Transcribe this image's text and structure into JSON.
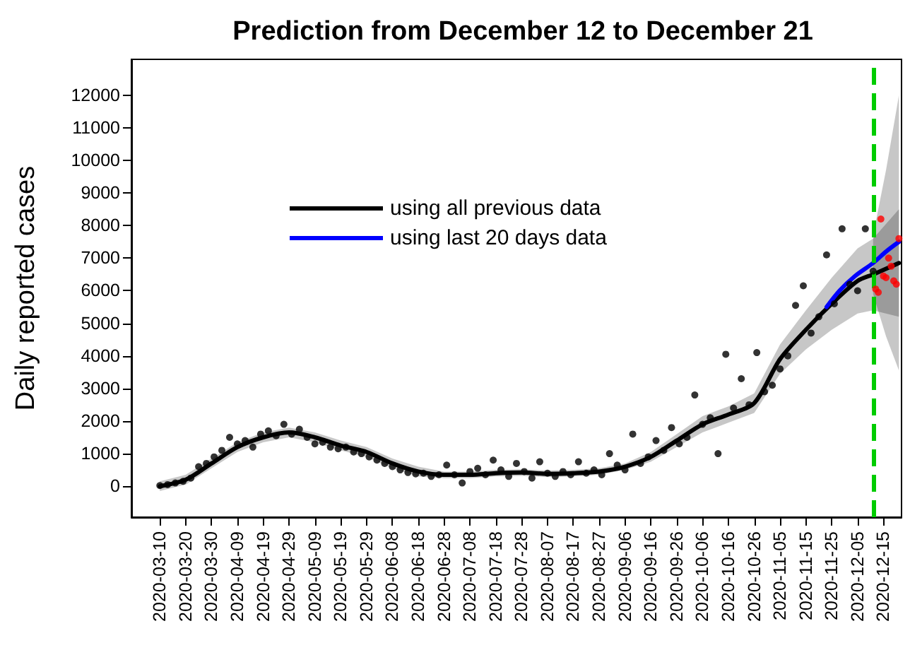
{
  "chart_data": {
    "type": "scatter",
    "title": "Prediction from December 12 to December 21",
    "ylabel": "Daily reported cases",
    "xlim": [
      "2020-02-28",
      "2020-12-22"
    ],
    "ylim": [
      -950,
      13100
    ],
    "xticks": [
      "2020-03-10",
      "2020-03-20",
      "2020-03-30",
      "2020-04-09",
      "2020-04-19",
      "2020-04-29",
      "2020-05-09",
      "2020-05-19",
      "2020-05-29",
      "2020-06-08",
      "2020-06-18",
      "2020-06-28",
      "2020-07-08",
      "2020-07-18",
      "2020-07-28",
      "2020-08-07",
      "2020-08-17",
      "2020-08-27",
      "2020-09-06",
      "2020-09-16",
      "2020-09-26",
      "2020-10-06",
      "2020-10-16",
      "2020-10-26",
      "2020-11-05",
      "2020-11-15",
      "2020-11-25",
      "2020-12-05",
      "2020-12-15"
    ],
    "yticks": [
      0,
      1000,
      2000,
      3000,
      4000,
      5000,
      6000,
      7000,
      8000,
      9000,
      10000,
      11000,
      12000
    ],
    "grid": false,
    "legend": "top left",
    "ref_lines": [
      {
        "axis": "x",
        "value": "2020-12-11",
        "color": "#00cc00",
        "line_style": "dashed"
      }
    ],
    "series": [
      {
        "marker": "circle",
        "color": "#000000",
        "x": [
          "2020-03-10",
          "2020-03-13",
          "2020-03-16",
          "2020-03-19",
          "2020-03-22",
          "2020-03-25",
          "2020-03-28",
          "2020-03-31",
          "2020-04-03",
          "2020-04-06",
          "2020-04-09",
          "2020-04-12",
          "2020-04-15",
          "2020-04-18",
          "2020-04-21",
          "2020-04-24",
          "2020-04-27",
          "2020-04-30",
          "2020-05-03",
          "2020-05-06",
          "2020-05-09",
          "2020-05-12",
          "2020-05-15",
          "2020-05-18",
          "2020-05-21",
          "2020-05-24",
          "2020-05-27",
          "2020-05-30",
          "2020-06-02",
          "2020-06-05",
          "2020-06-08",
          "2020-06-11",
          "2020-06-14",
          "2020-06-17",
          "2020-06-20",
          "2020-06-23",
          "2020-06-26",
          "2020-06-29",
          "2020-07-02",
          "2020-07-05",
          "2020-07-08",
          "2020-07-11",
          "2020-07-14",
          "2020-07-17",
          "2020-07-20",
          "2020-07-23",
          "2020-07-26",
          "2020-07-29",
          "2020-08-01",
          "2020-08-04",
          "2020-08-07",
          "2020-08-10",
          "2020-08-13",
          "2020-08-16",
          "2020-08-19",
          "2020-08-22",
          "2020-08-25",
          "2020-08-28",
          "2020-08-31",
          "2020-09-03",
          "2020-09-06",
          "2020-09-09",
          "2020-09-12",
          "2020-09-15",
          "2020-09-18",
          "2020-09-21",
          "2020-09-24",
          "2020-09-27",
          "2020-09-30",
          "2020-10-03",
          "2020-10-06",
          "2020-10-09",
          "2020-10-12",
          "2020-10-15",
          "2020-10-18",
          "2020-10-21",
          "2020-10-24",
          "2020-10-27",
          "2020-10-30",
          "2020-11-02",
          "2020-11-05",
          "2020-11-08",
          "2020-11-11",
          "2020-11-14",
          "2020-11-17",
          "2020-11-20",
          "2020-11-23",
          "2020-11-26",
          "2020-11-29",
          "2020-12-02",
          "2020-12-05",
          "2020-12-08",
          "2020-12-11"
        ],
        "values": [
          20,
          50,
          100,
          150,
          250,
          600,
          700,
          900,
          1100,
          1500,
          1300,
          1400,
          1200,
          1600,
          1700,
          1550,
          1900,
          1600,
          1750,
          1500,
          1300,
          1350,
          1200,
          1150,
          1200,
          1050,
          1000,
          900,
          800,
          700,
          600,
          500,
          420,
          380,
          400,
          300,
          350,
          650,
          350,
          100,
          450,
          550,
          350,
          800,
          500,
          300,
          700,
          450,
          250,
          750,
          400,
          300,
          450,
          350,
          750,
          400,
          500,
          350,
          1000,
          650,
          500,
          1600,
          700,
          900,
          1400,
          1100,
          1800,
          1300,
          1500,
          2800,
          1900,
          2100,
          1000,
          4050,
          2400,
          3300,
          2500,
          4100,
          2900,
          3100,
          3600,
          4000,
          5550,
          6150,
          4700,
          5200,
          7100,
          5600,
          7900,
          6200,
          6000,
          7900,
          6600
        ]
      },
      {
        "type": "line",
        "marker": "none",
        "name": "using all previous data",
        "color": "#000000",
        "x": [
          "2020-03-10",
          "2020-03-20",
          "2020-03-30",
          "2020-04-09",
          "2020-04-19",
          "2020-04-29",
          "2020-05-09",
          "2020-05-19",
          "2020-05-29",
          "2020-06-08",
          "2020-06-18",
          "2020-06-28",
          "2020-07-08",
          "2020-07-18",
          "2020-07-28",
          "2020-08-07",
          "2020-08-17",
          "2020-08-27",
          "2020-09-06",
          "2020-09-16",
          "2020-09-26",
          "2020-10-06",
          "2020-10-16",
          "2020-10-26",
          "2020-11-05",
          "2020-11-15",
          "2020-11-25",
          "2020-12-05",
          "2020-12-11",
          "2020-12-21"
        ],
        "values": [
          0,
          200,
          700,
          1200,
          1500,
          1650,
          1500,
          1250,
          1050,
          700,
          450,
          350,
          350,
          400,
          420,
          380,
          400,
          450,
          600,
          900,
          1400,
          1900,
          2200,
          2550,
          3900,
          4800,
          5600,
          6300,
          6500,
          6850
        ],
        "lower": [
          -150,
          50,
          550,
          1050,
          1350,
          1500,
          1350,
          1100,
          900,
          550,
          300,
          250,
          250,
          300,
          320,
          280,
          300,
          350,
          500,
          750,
          1200,
          1650,
          1950,
          2250,
          3450,
          4200,
          4800,
          5300,
          5400,
          5200
        ],
        "upper": [
          150,
          350,
          850,
          1350,
          1650,
          1800,
          1650,
          1400,
          1200,
          850,
          600,
          450,
          450,
          500,
          520,
          480,
          500,
          550,
          700,
          1050,
          1600,
          2150,
          2450,
          2850,
          4350,
          5400,
          6400,
          7300,
          7600,
          8500
        ]
      },
      {
        "type": "line",
        "marker": "none",
        "name": "using last 20 days data",
        "color": "#0000ff",
        "x": [
          "2020-11-23",
          "2020-11-28",
          "2020-12-04",
          "2020-12-11",
          "2020-12-16",
          "2020-12-21"
        ],
        "values": [
          5500,
          6000,
          6450,
          6850,
          7200,
          7500
        ],
        "lower": [
          null,
          null,
          null,
          5900,
          4600,
          3550
        ],
        "upper": [
          null,
          null,
          null,
          7700,
          9700,
          12000
        ]
      },
      {
        "marker": "circle",
        "color": "#ff0000",
        "x": [
          "2020-12-12",
          "2020-12-13",
          "2020-12-14",
          "2020-12-15",
          "2020-12-16",
          "2020-12-17",
          "2020-12-18",
          "2020-12-19",
          "2020-12-20",
          "2020-12-21"
        ],
        "values": [
          6050,
          5950,
          8200,
          6450,
          6400,
          7000,
          6750,
          6300,
          6200,
          7600
        ]
      }
    ]
  }
}
